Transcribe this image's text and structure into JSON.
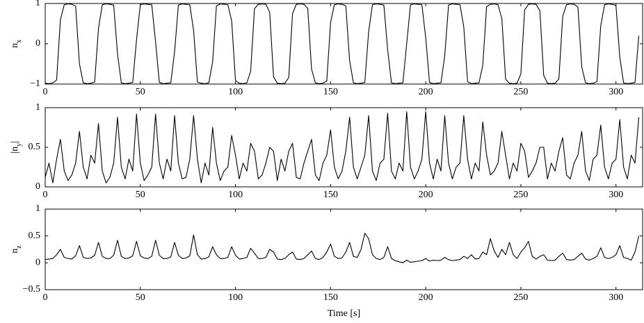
{
  "chart_data": [
    {
      "type": "line",
      "ylabel": [
        "n",
        "x"
      ],
      "x": [
        0,
        2,
        4,
        6,
        8,
        10,
        12,
        14,
        16,
        18,
        20,
        22,
        24,
        26,
        28,
        30,
        32,
        34,
        36,
        38,
        40,
        42,
        44,
        46,
        48,
        50,
        52,
        54,
        56,
        58,
        60,
        62,
        64,
        66,
        68,
        70,
        72,
        74,
        76,
        78,
        80,
        82,
        84,
        86,
        88,
        90,
        92,
        94,
        96,
        98,
        100,
        102,
        104,
        106,
        108,
        110,
        112,
        114,
        116,
        118,
        120,
        122,
        124,
        126,
        128,
        130,
        132,
        134,
        136,
        138,
        140,
        142,
        144,
        146,
        148,
        150,
        152,
        154,
        156,
        158,
        160,
        162,
        164,
        166,
        168,
        170,
        172,
        174,
        176,
        178,
        180,
        182,
        184,
        186,
        188,
        190,
        192,
        194,
        196,
        198,
        200,
        202,
        204,
        206,
        208,
        210,
        212,
        214,
        216,
        218,
        220,
        222,
        224,
        226,
        228,
        230,
        232,
        234,
        236,
        238,
        240,
        242,
        244,
        246,
        248,
        250,
        252,
        254,
        256,
        258,
        260,
        262,
        264,
        266,
        268,
        270,
        272,
        274,
        276,
        278,
        280,
        282,
        284,
        286,
        288,
        290,
        292,
        294,
        296,
        298,
        300,
        302,
        304,
        306,
        308,
        310,
        312
      ],
      "series": [
        {
          "color": "#000000",
          "values": [
            -0.98,
            -0.99,
            -0.97,
            -0.9,
            0.6,
            0.97,
            0.99,
            0.98,
            0.93,
            -0.5,
            -0.97,
            -0.99,
            -0.98,
            -0.95,
            0.38,
            0.97,
            0.99,
            0.98,
            0.96,
            -0.25,
            -0.97,
            -0.99,
            -0.98,
            -0.96,
            0.1,
            0.97,
            0.99,
            0.98,
            0.97,
            0.05,
            -0.96,
            -0.99,
            -0.98,
            -0.97,
            -0.2,
            0.96,
            0.99,
            0.98,
            0.97,
            0.33,
            -0.95,
            -0.98,
            -0.99,
            -0.97,
            -0.45,
            0.94,
            0.99,
            0.98,
            0.97,
            0.57,
            -0.91,
            -0.98,
            -0.99,
            -0.97,
            -0.68,
            0.87,
            0.98,
            0.99,
            0.98,
            0.78,
            -0.82,
            -0.98,
            -0.99,
            -0.98,
            -0.84,
            0.75,
            0.98,
            0.99,
            0.98,
            0.88,
            -0.63,
            -0.97,
            -0.99,
            -0.98,
            -0.92,
            0.53,
            0.97,
            0.99,
            0.98,
            0.94,
            -0.42,
            -0.97,
            -0.99,
            -0.98,
            -0.96,
            0.3,
            0.97,
            0.99,
            0.98,
            0.96,
            -0.15,
            -0.97,
            -0.99,
            -0.98,
            -0.97,
            0,
            0.97,
            0.99,
            0.98,
            0.97,
            0.15,
            -0.96,
            -0.99,
            -0.98,
            -0.97,
            -0.3,
            0.96,
            0.99,
            0.98,
            0.97,
            0.42,
            -0.94,
            -0.99,
            -0.98,
            -0.97,
            -0.53,
            0.92,
            0.98,
            0.99,
            0.97,
            0.63,
            -0.88,
            -0.98,
            -0.99,
            -0.98,
            -0.75,
            0.84,
            0.98,
            0.99,
            0.98,
            0.82,
            -0.78,
            -0.98,
            -0.99,
            -0.98,
            -0.87,
            0.68,
            0.97,
            0.99,
            0.98,
            0.91,
            -0.57,
            -0.97,
            -0.99,
            -0.98,
            -0.94,
            0.45,
            0.97,
            0.99,
            0.98,
            0.95,
            -0.33,
            -0.97,
            -0.99,
            -0.98,
            -0.96,
            0.2
          ]
        }
      ],
      "xlim": [
        0,
        314
      ],
      "xticks": [
        0,
        50,
        100,
        150,
        200,
        250,
        300
      ],
      "ylim": [
        -1,
        1
      ],
      "yticks": [
        {
          "value": -1,
          "label": "−1"
        },
        0,
        1
      ]
    },
    {
      "type": "line",
      "ylabel": [
        "|n",
        "y",
        "|"
      ],
      "x": [
        0,
        2,
        4,
        6,
        8,
        10,
        12,
        14,
        16,
        18,
        20,
        22,
        24,
        26,
        28,
        30,
        32,
        34,
        36,
        38,
        40,
        42,
        44,
        46,
        48,
        50,
        52,
        54,
        56,
        58,
        60,
        62,
        64,
        66,
        68,
        70,
        72,
        74,
        76,
        78,
        80,
        82,
        84,
        86,
        88,
        90,
        92,
        94,
        96,
        98,
        100,
        102,
        104,
        106,
        108,
        110,
        112,
        114,
        116,
        118,
        120,
        122,
        124,
        126,
        128,
        130,
        132,
        134,
        136,
        138,
        140,
        142,
        144,
        146,
        148,
        150,
        152,
        154,
        156,
        158,
        160,
        162,
        164,
        166,
        168,
        170,
        172,
        174,
        176,
        178,
        180,
        182,
        184,
        186,
        188,
        190,
        192,
        194,
        196,
        198,
        200,
        202,
        204,
        206,
        208,
        210,
        212,
        214,
        216,
        218,
        220,
        222,
        224,
        226,
        228,
        230,
        232,
        234,
        236,
        238,
        240,
        242,
        244,
        246,
        248,
        250,
        252,
        254,
        256,
        258,
        260,
        262,
        264,
        266,
        268,
        270,
        272,
        274,
        276,
        278,
        280,
        282,
        284,
        286,
        288,
        290,
        292,
        294,
        296,
        298,
        300,
        302,
        304,
        306,
        308,
        310,
        312
      ],
      "series": [
        {
          "color": "#000000",
          "values": [
            0.12,
            0.3,
            0.05,
            0.35,
            0.6,
            0.2,
            0.08,
            0.15,
            0.3,
            0.7,
            0.25,
            0.1,
            0.4,
            0.3,
            0.8,
            0.2,
            0.05,
            0.12,
            0.3,
            0.88,
            0.25,
            0.1,
            0.35,
            0.2,
            0.92,
            0.3,
            0.08,
            0.15,
            0.25,
            0.92,
            0.3,
            0.1,
            0.35,
            0.2,
            0.9,
            0.3,
            0.1,
            0.12,
            0.35,
            0.9,
            0.35,
            0.05,
            0.3,
            0.15,
            0.75,
            0.3,
            0.08,
            0.2,
            0.25,
            0.65,
            0.4,
            0.1,
            0.3,
            0.2,
            0.55,
            0.45,
            0.1,
            0.15,
            0.3,
            0.5,
            0.45,
            0.08,
            0.35,
            0.2,
            0.45,
            0.55,
            0.12,
            0.1,
            0.3,
            0.45,
            0.6,
            0.15,
            0.08,
            0.3,
            0.4,
            0.72,
            0.25,
            0.1,
            0.2,
            0.45,
            0.88,
            0.25,
            0.1,
            0.25,
            0.4,
            0.9,
            0.2,
            0.08,
            0.3,
            0.35,
            0.93,
            0.2,
            0.1,
            0.3,
            0.2,
            0.95,
            0.25,
            0.1,
            0.2,
            0.35,
            0.95,
            0.3,
            0.1,
            0.35,
            0.2,
            0.9,
            0.3,
            0.1,
            0.25,
            0.3,
            0.9,
            0.35,
            0.1,
            0.3,
            0.2,
            0.82,
            0.4,
            0.15,
            0.2,
            0.3,
            0.7,
            0.4,
            0.1,
            0.3,
            0.2,
            0.55,
            0.45,
            0.12,
            0.2,
            0.3,
            0.5,
            0.5,
            0.1,
            0.3,
            0.2,
            0.45,
            0.62,
            0.15,
            0.1,
            0.3,
            0.4,
            0.7,
            0.2,
            0.08,
            0.35,
            0.4,
            0.78,
            0.25,
            0.1,
            0.3,
            0.35,
            0.85,
            0.25,
            0.1,
            0.4,
            0.3,
            0.88
          ]
        }
      ],
      "xlim": [
        0,
        314
      ],
      "xticks": [
        0,
        50,
        100,
        150,
        200,
        250,
        300
      ],
      "ylim": [
        0,
        1
      ],
      "yticks": [
        0,
        0.5,
        1
      ]
    },
    {
      "type": "line",
      "ylabel": [
        "n",
        "z"
      ],
      "xlabel": "Time [s]",
      "x": [
        0,
        2,
        4,
        6,
        8,
        10,
        12,
        14,
        16,
        18,
        20,
        22,
        24,
        26,
        28,
        30,
        32,
        34,
        36,
        38,
        40,
        42,
        44,
        46,
        48,
        50,
        52,
        54,
        56,
        58,
        60,
        62,
        64,
        66,
        68,
        70,
        72,
        74,
        76,
        78,
        80,
        82,
        84,
        86,
        88,
        90,
        92,
        94,
        96,
        98,
        100,
        102,
        104,
        106,
        108,
        110,
        112,
        114,
        116,
        118,
        120,
        122,
        124,
        126,
        128,
        130,
        132,
        134,
        136,
        138,
        140,
        142,
        144,
        146,
        148,
        150,
        152,
        154,
        156,
        158,
        160,
        162,
        164,
        166,
        168,
        170,
        172,
        174,
        176,
        178,
        180,
        182,
        184,
        186,
        188,
        190,
        192,
        194,
        196,
        198,
        200,
        202,
        204,
        206,
        208,
        210,
        212,
        214,
        216,
        218,
        220,
        222,
        224,
        226,
        228,
        230,
        232,
        234,
        236,
        238,
        240,
        242,
        244,
        246,
        248,
        250,
        252,
        254,
        256,
        258,
        260,
        262,
        264,
        266,
        268,
        270,
        272,
        274,
        276,
        278,
        280,
        282,
        284,
        286,
        288,
        290,
        292,
        294,
        296,
        298,
        300,
        302,
        304,
        306,
        308,
        310,
        312
      ],
      "series": [
        {
          "color": "#000000",
          "values": [
            0.06,
            0.07,
            0.08,
            0.15,
            0.25,
            0.1,
            0.08,
            0.07,
            0.13,
            0.32,
            0.1,
            0.08,
            0.09,
            0.14,
            0.38,
            0.12,
            0.08,
            0.08,
            0.14,
            0.42,
            0.12,
            0.08,
            0.09,
            0.13,
            0.4,
            0.13,
            0.09,
            0.08,
            0.12,
            0.42,
            0.14,
            0.08,
            0.08,
            0.11,
            0.38,
            0.14,
            0.08,
            0.09,
            0.13,
            0.52,
            0.15,
            0.07,
            0.08,
            0.11,
            0.3,
            0.15,
            0.08,
            0.08,
            0.1,
            0.3,
            0.14,
            0.07,
            0.08,
            0.1,
            0.27,
            0.18,
            0.08,
            0.08,
            0.1,
            0.25,
            0.2,
            0.07,
            0.06,
            0.08,
            0.15,
            0.2,
            0.07,
            0.06,
            0.08,
            0.15,
            0.22,
            0.08,
            0.06,
            0.1,
            0.2,
            0.35,
            0.12,
            0.08,
            0.09,
            0.2,
            0.38,
            0.12,
            0.1,
            0.25,
            0.55,
            0.45,
            0.15,
            0.08,
            0.06,
            0.1,
            0.3,
            0.08,
            0.04,
            0.02,
            0,
            0.05,
            0.01,
            0.02,
            0.03,
            0.04,
            0.08,
            0.03,
            0.05,
            0.04,
            0.05,
            0.1,
            0.06,
            0.04,
            0.05,
            0.06,
            0.12,
            0.08,
            0.15,
            0.07,
            0.08,
            0.2,
            0.15,
            0.45,
            0.22,
            0.1,
            0.25,
            0.15,
            0.38,
            0.15,
            0.08,
            0.2,
            0.28,
            0.4,
            0.12,
            0.07,
            0.12,
            0.15,
            0.05,
            0.04,
            0.05,
            0.12,
            0.18,
            0.06,
            0.05,
            0.06,
            0.12,
            0.18,
            0.07,
            0.05,
            0.08,
            0.12,
            0.28,
            0.1,
            0.08,
            0.1,
            0.15,
            0.32,
            0.1,
            0.08,
            0.05,
            0.2,
            0.5
          ]
        }
      ],
      "xlim": [
        0,
        314
      ],
      "xticks": [
        0,
        50,
        100,
        150,
        200,
        250,
        300
      ],
      "ylim": [
        -0.5,
        1
      ],
      "yticks": [
        {
          "value": -0.5,
          "label": "−0.5"
        },
        0,
        0.5,
        1
      ]
    }
  ]
}
